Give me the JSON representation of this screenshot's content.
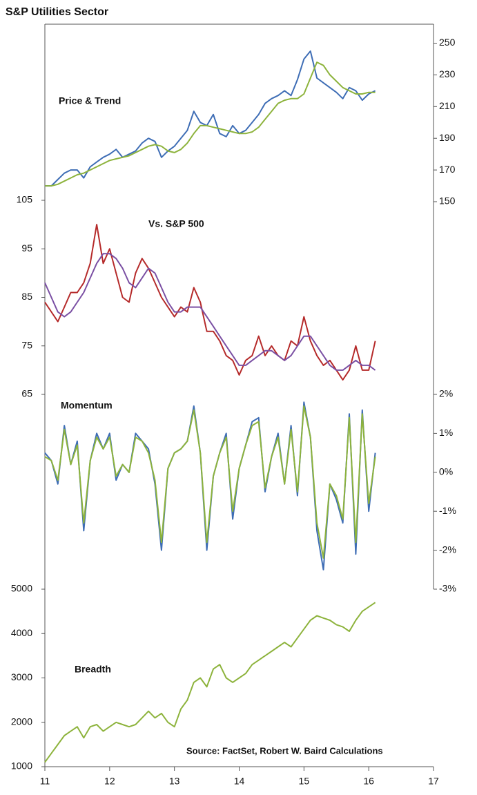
{
  "title": "S&P Utilities Sector",
  "chart_data": [
    {
      "type": "line",
      "title": "Price & Trend",
      "y_axis": "right",
      "x": [
        11.0,
        11.1,
        11.2,
        11.3,
        11.4,
        11.5,
        11.6,
        11.7,
        11.8,
        11.9,
        12.0,
        12.1,
        12.2,
        12.3,
        12.4,
        12.5,
        12.6,
        12.7,
        12.8,
        12.9,
        13.0,
        13.1,
        13.2,
        13.3,
        13.4,
        13.5,
        13.6,
        13.7,
        13.8,
        13.9,
        14.0,
        14.1,
        14.2,
        14.3,
        14.4,
        14.5,
        14.6,
        14.7,
        14.8,
        14.9,
        15.0,
        15.1,
        15.2,
        15.3,
        15.4,
        15.5,
        15.6,
        15.7,
        15.8,
        15.9,
        16.0,
        16.1
      ],
      "series": [
        {
          "color": "#3e6db5",
          "values": [
            160,
            160,
            164,
            168,
            170,
            170,
            165,
            172,
            175,
            178,
            180,
            183,
            178,
            180,
            182,
            187,
            190,
            188,
            178,
            182,
            185,
            190,
            195,
            207,
            200,
            198,
            205,
            193,
            191,
            198,
            193,
            195,
            200,
            205,
            212,
            215,
            217,
            220,
            217,
            227,
            240,
            245,
            228,
            225,
            222,
            219,
            215,
            222,
            220,
            214,
            218,
            220
          ]
        },
        {
          "color": "#8db33c",
          "values": [
            160,
            160,
            161,
            163,
            165,
            167,
            168,
            170,
            172,
            174,
            176,
            177,
            178,
            179,
            181,
            183,
            185,
            186,
            185,
            182,
            181,
            183,
            187,
            193,
            198,
            198,
            197,
            196,
            195,
            194,
            193,
            193,
            194,
            197,
            202,
            207,
            212,
            214,
            215,
            215,
            218,
            228,
            238,
            236,
            230,
            226,
            222,
            220,
            218,
            218,
            219,
            219
          ]
        }
      ],
      "ylim": [
        150,
        262
      ],
      "yticks": [
        150,
        170,
        190,
        210,
        230,
        250
      ]
    },
    {
      "type": "line",
      "title": "Vs. S&P 500",
      "y_axis": "left",
      "x": [
        11.0,
        11.1,
        11.2,
        11.3,
        11.4,
        11.5,
        11.6,
        11.7,
        11.8,
        11.9,
        12.0,
        12.1,
        12.2,
        12.3,
        12.4,
        12.5,
        12.6,
        12.7,
        12.8,
        12.9,
        13.0,
        13.1,
        13.2,
        13.3,
        13.4,
        13.5,
        13.6,
        13.7,
        13.8,
        13.9,
        14.0,
        14.1,
        14.2,
        14.3,
        14.4,
        14.5,
        14.6,
        14.7,
        14.8,
        14.9,
        15.0,
        15.1,
        15.2,
        15.3,
        15.4,
        15.5,
        15.6,
        15.7,
        15.8,
        15.9,
        16.0,
        16.1
      ],
      "series": [
        {
          "color": "#b52a2a",
          "values": [
            84,
            82,
            80,
            83,
            86,
            86,
            88,
            92,
            100,
            92,
            95,
            90,
            85,
            84,
            90,
            93,
            91,
            88,
            85,
            83,
            81,
            83,
            82,
            87,
            84,
            78,
            78,
            76,
            73,
            72,
            69,
            72,
            73,
            77,
            73,
            75,
            73,
            72,
            76,
            75,
            81,
            76,
            73,
            71,
            72,
            70,
            68,
            70,
            75,
            70,
            70,
            76
          ]
        },
        {
          "color": "#7a4fa3",
          "values": [
            88,
            85,
            82,
            81,
            82,
            84,
            86,
            89,
            92,
            94,
            94,
            93,
            91,
            88,
            87,
            89,
            91,
            90,
            87,
            84,
            82,
            82,
            83,
            83,
            83,
            81,
            79,
            77,
            75,
            73,
            71,
            71,
            72,
            73,
            74,
            74,
            73,
            72,
            73,
            75,
            77,
            77,
            75,
            73,
            71,
            70,
            70,
            71,
            72,
            71,
            71,
            70
          ]
        }
      ],
      "ylim": [
        65,
        105
      ],
      "yticks": [
        65,
        75,
        85,
        95,
        105
      ]
    },
    {
      "type": "line",
      "title": "Momentum",
      "y_axis": "right",
      "x": [
        11.0,
        11.1,
        11.2,
        11.3,
        11.4,
        11.5,
        11.6,
        11.7,
        11.8,
        11.9,
        12.0,
        12.1,
        12.2,
        12.3,
        12.4,
        12.5,
        12.6,
        12.7,
        12.8,
        12.9,
        13.0,
        13.1,
        13.2,
        13.3,
        13.4,
        13.5,
        13.6,
        13.7,
        13.8,
        13.9,
        14.0,
        14.1,
        14.2,
        14.3,
        14.4,
        14.5,
        14.6,
        14.7,
        14.8,
        14.9,
        15.0,
        15.1,
        15.2,
        15.3,
        15.4,
        15.5,
        15.6,
        15.7,
        15.8,
        15.9,
        16.0,
        16.1
      ],
      "series": [
        {
          "color": "#3e6db5",
          "values": [
            0.5,
            0.3,
            -0.3,
            1.2,
            0.2,
            0.8,
            -1.5,
            0.3,
            1.0,
            0.6,
            1.0,
            -0.2,
            0.2,
            0.0,
            1.0,
            0.8,
            0.6,
            -0.3,
            -2.0,
            0.1,
            0.5,
            0.6,
            0.8,
            1.7,
            0.5,
            -2.0,
            -0.1,
            0.5,
            1.0,
            -1.2,
            0.1,
            0.7,
            1.3,
            1.4,
            -0.5,
            0.4,
            1.0,
            -0.3,
            1.2,
            -0.6,
            1.8,
            0.9,
            -1.5,
            -2.5,
            -0.3,
            -0.7,
            -1.3,
            1.5,
            -2.1,
            1.6,
            -1.0,
            0.5
          ]
        },
        {
          "color": "#8db33c",
          "values": [
            0.4,
            0.3,
            -0.2,
            1.1,
            0.2,
            0.7,
            -1.3,
            0.3,
            0.9,
            0.6,
            0.9,
            -0.1,
            0.2,
            0.0,
            0.9,
            0.8,
            0.5,
            -0.2,
            -1.8,
            0.1,
            0.5,
            0.6,
            0.8,
            1.6,
            0.5,
            -1.8,
            -0.1,
            0.5,
            0.9,
            -1.0,
            0.1,
            0.7,
            1.2,
            1.3,
            -0.4,
            0.4,
            0.9,
            -0.3,
            1.1,
            -0.5,
            1.7,
            0.9,
            -1.3,
            -2.2,
            -0.3,
            -0.6,
            -1.2,
            1.4,
            -1.8,
            1.5,
            -0.8,
            0.4
          ]
        }
      ],
      "ylim": [
        -3,
        2
      ],
      "yticks": [
        {
          "value": -3,
          "label": "-3%"
        },
        {
          "value": -2,
          "label": "-2%"
        },
        {
          "value": -1,
          "label": "-1%"
        },
        {
          "value": 0,
          "label": "0%"
        },
        {
          "value": 1,
          "label": "1%"
        },
        {
          "value": 2,
          "label": "2%"
        }
      ]
    },
    {
      "type": "line",
      "title": "Breadth",
      "y_axis": "left",
      "annotation": "Source: FactSet, Robert W. Baird Calculations",
      "x": [
        11.0,
        11.1,
        11.2,
        11.3,
        11.4,
        11.5,
        11.6,
        11.7,
        11.8,
        11.9,
        12.0,
        12.1,
        12.2,
        12.3,
        12.4,
        12.5,
        12.6,
        12.7,
        12.8,
        12.9,
        13.0,
        13.1,
        13.2,
        13.3,
        13.4,
        13.5,
        13.6,
        13.7,
        13.8,
        13.9,
        14.0,
        14.1,
        14.2,
        14.3,
        14.4,
        14.5,
        14.6,
        14.7,
        14.8,
        14.9,
        15.0,
        15.1,
        15.2,
        15.3,
        15.4,
        15.5,
        15.6,
        15.7,
        15.8,
        15.9,
        16.0,
        16.1
      ],
      "series": [
        {
          "color": "#8db33c",
          "values": [
            1100,
            1300,
            1500,
            1700,
            1800,
            1900,
            1650,
            1900,
            1950,
            1800,
            1900,
            2000,
            1950,
            1900,
            1950,
            2100,
            2250,
            2100,
            2200,
            2000,
            1900,
            2300,
            2500,
            2900,
            3000,
            2800,
            3200,
            3300,
            3000,
            2900,
            3000,
            3100,
            3300,
            3400,
            3500,
            3600,
            3700,
            3800,
            3700,
            3900,
            4100,
            4300,
            4400,
            4350,
            4300,
            4200,
            4150,
            4050,
            4300,
            4500,
            4600,
            4700
          ]
        }
      ],
      "ylim": [
        1000,
        5000
      ],
      "yticks": [
        1000,
        2000,
        3000,
        4000,
        5000
      ],
      "xlim": [
        11,
        17
      ],
      "xticks": [
        11,
        12,
        13,
        14,
        15,
        16,
        17
      ]
    }
  ]
}
